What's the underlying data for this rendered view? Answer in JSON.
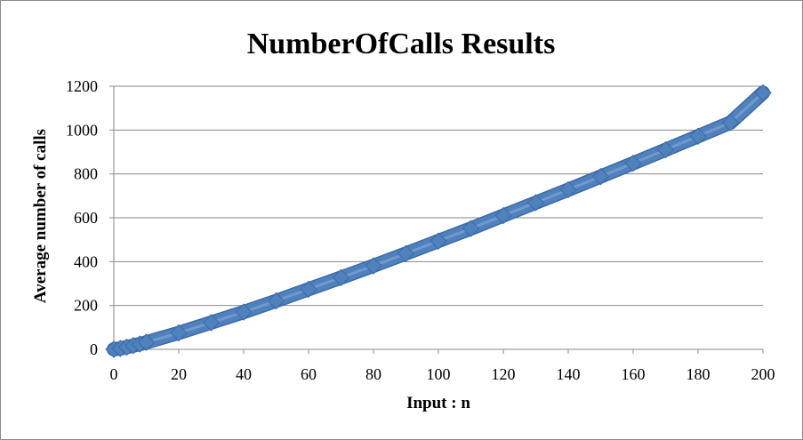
{
  "chart_data": {
    "type": "scatter",
    "title": "NumberOfCalls Results",
    "xlabel": "Input : n",
    "ylabel": "Average number of calls",
    "xlim": [
      0,
      200
    ],
    "ylim": [
      0,
      1200
    ],
    "xticks": [
      0,
      20,
      40,
      60,
      80,
      100,
      120,
      140,
      160,
      180,
      200
    ],
    "yticks": [
      0,
      200,
      400,
      600,
      800,
      1000,
      1200
    ],
    "grid": "horizontal",
    "legend": "none",
    "marker": "diamond",
    "marker_color": "#4f81bd",
    "series": [
      {
        "x": [
          0,
          2,
          4,
          6,
          8,
          10,
          20,
          30,
          40,
          50,
          60,
          70,
          80,
          90,
          100,
          110,
          120,
          130,
          140,
          150,
          160,
          170,
          180,
          190,
          200
        ],
        "y": [
          0,
          4,
          10,
          17,
          24,
          32,
          75,
          122,
          170,
          221,
          274,
          327,
          381,
          437,
          494,
          551,
          610,
          669,
          728,
          788,
          849,
          910,
          972,
          1034,
          1170
        ]
      }
    ]
  }
}
